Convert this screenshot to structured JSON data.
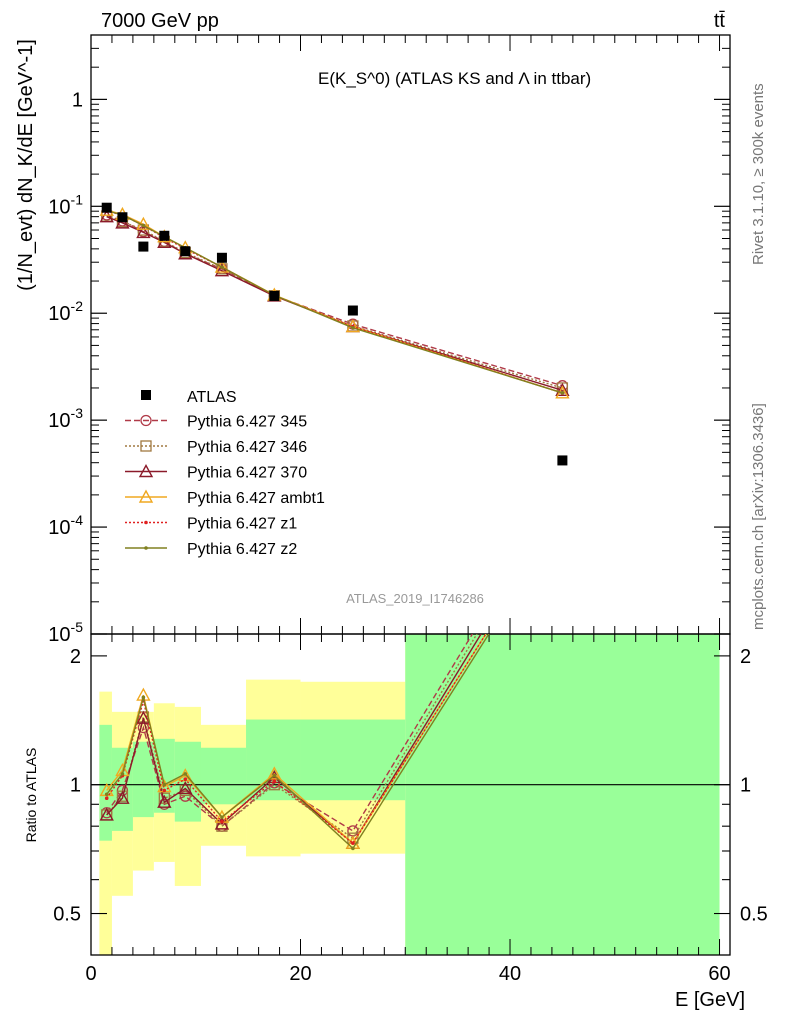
{
  "header": {
    "left": "7000 GeV pp",
    "right": "tt̄"
  },
  "side_labels": {
    "rivet": "Rivet 3.1.10, ≥ 300k events",
    "mcplots": "mcplots.cern.ch [arXiv:1306.3436]"
  },
  "chart_data": {
    "type": "line",
    "title": "E(K_S^0) (ATLAS KS and Λ in ttbar)",
    "analysis_label": "ATLAS_2019_I1746286",
    "xlabel": "E [GeV]",
    "ylabel": "(1/N_evt) dN_K/dE [GeV^-1]",
    "ratio_ylabel": "Ratio to ATLAS",
    "xlim": [
      0,
      61
    ],
    "ylim": [
      1e-05,
      4
    ],
    "yscale": "log",
    "ratio_ylim": [
      0.4,
      2.25
    ],
    "x_ticks": [
      "0",
      "20",
      "40",
      "60"
    ],
    "y_ticks": [
      "1",
      "10^-1",
      "10^-2",
      "10^-3",
      "10^-4",
      "10^-5"
    ],
    "ratio_ticks": [
      "0.5",
      "1",
      "2"
    ],
    "legend_position": "bottom-left",
    "data": {
      "name": "ATLAS",
      "color": "#000000",
      "x": [
        1.5,
        3,
        5,
        7,
        9,
        12.5,
        17.5,
        25,
        45
      ],
      "y": [
        0.097,
        0.079,
        0.042,
        0.053,
        0.038,
        0.033,
        0.0145,
        0.0106,
        0.00042
      ]
    },
    "bands": {
      "edges": [
        0.8,
        2.0,
        4.0,
        6.0,
        8.0,
        10.5,
        14.8,
        20,
        30,
        60
      ],
      "inner_lo": [
        0.74,
        0.78,
        0.84,
        0.86,
        0.82,
        0.9,
        0.92,
        0.92,
        0.32
      ],
      "inner_hi": [
        1.38,
        1.22,
        1.26,
        1.28,
        1.26,
        1.22,
        1.42,
        1.42,
        2.4
      ],
      "outer_lo": [
        0.36,
        0.55,
        0.63,
        0.66,
        0.58,
        0.72,
        0.68,
        0.69,
        0.32
      ],
      "outer_hi": [
        1.65,
        1.48,
        1.48,
        1.55,
        1.52,
        1.38,
        1.76,
        1.74,
        2.4
      ],
      "inner_color": "#99ff99",
      "outer_color": "#ffff99"
    },
    "series": [
      {
        "name": "Pythia 6.427 345",
        "color": "#b03a48",
        "dash": "6,3",
        "marker": "circle",
        "x": [
          1.5,
          3,
          5,
          7,
          9,
          12.5,
          17.5,
          25,
          45
        ],
        "y": [
          0.083,
          0.073,
          0.058,
          0.047,
          0.036,
          0.026,
          0.0146,
          0.0079,
          0.0021
        ],
        "ratio": [
          0.86,
          0.97,
          1.36,
          0.9,
          0.94,
          0.8,
          1.01,
          0.78,
          5.0
        ]
      },
      {
        "name": "Pythia 6.427 346",
        "color": "#a07840",
        "dash": "2,2",
        "marker": "square",
        "x": [
          1.5,
          3,
          5,
          7,
          9,
          12.5,
          17.5,
          25,
          45
        ],
        "y": [
          0.081,
          0.072,
          0.06,
          0.047,
          0.037,
          0.026,
          0.0146,
          0.0076,
          0.002
        ],
        "ratio": [
          0.85,
          0.94,
          1.44,
          0.93,
          0.97,
          0.8,
          1.0,
          0.75,
          4.8
        ]
      },
      {
        "name": "Pythia 6.427 370",
        "color": "#8b1a2a",
        "dash": "",
        "marker": "triangle",
        "x": [
          1.5,
          3,
          5,
          7,
          9,
          12.5,
          17.5,
          25,
          45
        ],
        "y": [
          0.08,
          0.07,
          0.057,
          0.046,
          0.036,
          0.025,
          0.0145,
          0.0075,
          0.0019
        ],
        "ratio": [
          0.85,
          0.93,
          1.43,
          0.91,
          0.98,
          0.81,
          1.04,
          0.73,
          4.6
        ]
      },
      {
        "name": "Pythia 6.427 ambt1",
        "color": "#f0a820",
        "dash": "",
        "marker": "triangle",
        "x": [
          1.5,
          3,
          5,
          7,
          9,
          12.5,
          17.5,
          25,
          45
        ],
        "y": [
          0.092,
          0.084,
          0.068,
          0.052,
          0.041,
          0.027,
          0.0148,
          0.0075,
          0.0018
        ],
        "ratio": [
          0.97,
          1.08,
          1.62,
          0.99,
          1.05,
          0.84,
          1.06,
          0.73,
          4.3
        ]
      },
      {
        "name": "Pythia 6.427 z1",
        "color": "#e02020",
        "dash": "2,2",
        "marker": "dot",
        "x": [
          1.5,
          3,
          5,
          7,
          9,
          12.5,
          17.5,
          25,
          45
        ],
        "y": [
          0.09,
          0.083,
          0.066,
          0.051,
          0.04,
          0.027,
          0.0146,
          0.0075,
          0.0018
        ],
        "ratio": [
          0.93,
          1.05,
          1.57,
          0.97,
          1.03,
          0.82,
          1.02,
          0.73,
          4.3
        ]
      },
      {
        "name": "Pythia 6.427 z2",
        "color": "#808020",
        "dash": "",
        "marker": "dot",
        "x": [
          1.5,
          3,
          5,
          7,
          9,
          12.5,
          17.5,
          25,
          45
        ],
        "y": [
          0.091,
          0.083,
          0.066,
          0.052,
          0.041,
          0.027,
          0.0147,
          0.0073,
          0.0018
        ],
        "ratio": [
          0.95,
          1.06,
          1.6,
          1.0,
          1.06,
          0.84,
          1.05,
          0.71,
          4.2
        ]
      }
    ]
  }
}
